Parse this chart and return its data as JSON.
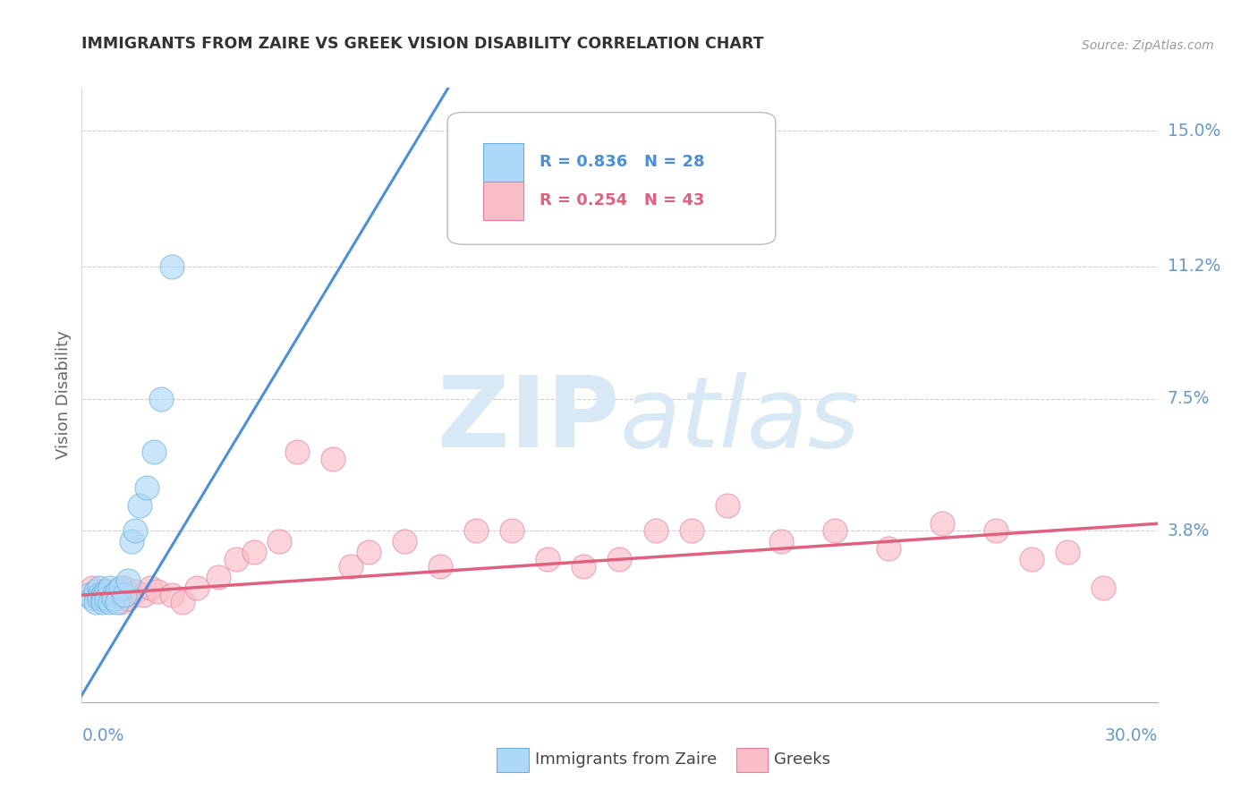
{
  "title": "IMMIGRANTS FROM ZAIRE VS GREEK VISION DISABILITY CORRELATION CHART",
  "source_text": "Source: ZipAtlas.com",
  "ylabel": "Vision Disability",
  "ytick_values": [
    0.038,
    0.075,
    0.112,
    0.15
  ],
  "ytick_labels": [
    "3.8%",
    "7.5%",
    "11.2%",
    "15.0%"
  ],
  "xlim": [
    0.0,
    0.3
  ],
  "ylim": [
    -0.01,
    0.162
  ],
  "blue_R": "0.836",
  "blue_N": "28",
  "pink_R": "0.254",
  "pink_N": "43",
  "blue_marker_color": "#ADD8F7",
  "blue_edge_color": "#6BAED6",
  "pink_marker_color": "#FABEC9",
  "pink_edge_color": "#E0809A",
  "blue_line_color": "#4A90D9",
  "pink_line_color": "#E06080",
  "watermark_color": "#D8E8F5",
  "legend_label_blue": "Immigrants from Zaire",
  "legend_label_pink": "Greeks",
  "bg_color": "#FFFFFF",
  "grid_color": "#BBBBBB",
  "title_color": "#333333",
  "axis_tick_color": "#6699CC",
  "ylabel_color": "#666666",
  "blue_scatter_x": [
    0.002,
    0.003,
    0.004,
    0.004,
    0.005,
    0.005,
    0.005,
    0.006,
    0.006,
    0.006,
    0.007,
    0.007,
    0.008,
    0.008,
    0.009,
    0.009,
    0.01,
    0.01,
    0.011,
    0.012,
    0.013,
    0.014,
    0.015,
    0.016,
    0.018,
    0.02,
    0.022,
    0.025
  ],
  "blue_scatter_y": [
    0.02,
    0.019,
    0.021,
    0.018,
    0.022,
    0.02,
    0.019,
    0.02,
    0.019,
    0.018,
    0.021,
    0.019,
    0.022,
    0.018,
    0.02,
    0.019,
    0.021,
    0.018,
    0.022,
    0.02,
    0.024,
    0.035,
    0.038,
    0.045,
    0.05,
    0.06,
    0.075,
    0.112
  ],
  "pink_scatter_x": [
    0.003,
    0.005,
    0.006,
    0.007,
    0.008,
    0.009,
    0.01,
    0.011,
    0.012,
    0.013,
    0.015,
    0.017,
    0.019,
    0.021,
    0.025,
    0.028,
    0.032,
    0.038,
    0.043,
    0.048,
    0.055,
    0.06,
    0.07,
    0.075,
    0.08,
    0.09,
    0.1,
    0.11,
    0.12,
    0.13,
    0.14,
    0.15,
    0.16,
    0.17,
    0.18,
    0.195,
    0.21,
    0.225,
    0.24,
    0.255,
    0.265,
    0.275,
    0.285
  ],
  "pink_scatter_y": [
    0.022,
    0.02,
    0.021,
    0.02,
    0.019,
    0.021,
    0.02,
    0.018,
    0.022,
    0.019,
    0.021,
    0.02,
    0.022,
    0.021,
    0.02,
    0.018,
    0.022,
    0.025,
    0.03,
    0.032,
    0.035,
    0.06,
    0.058,
    0.028,
    0.032,
    0.035,
    0.028,
    0.038,
    0.038,
    0.03,
    0.028,
    0.03,
    0.038,
    0.038,
    0.045,
    0.035,
    0.038,
    0.033,
    0.04,
    0.038,
    0.03,
    0.032,
    0.022
  ],
  "blue_line_x0": 0.0,
  "blue_line_y0": -0.008,
  "blue_line_x1": 0.095,
  "blue_line_y1": 0.15,
  "pink_line_x0": 0.0,
  "pink_line_y0": 0.02,
  "pink_line_x1": 0.3,
  "pink_line_y1": 0.04
}
